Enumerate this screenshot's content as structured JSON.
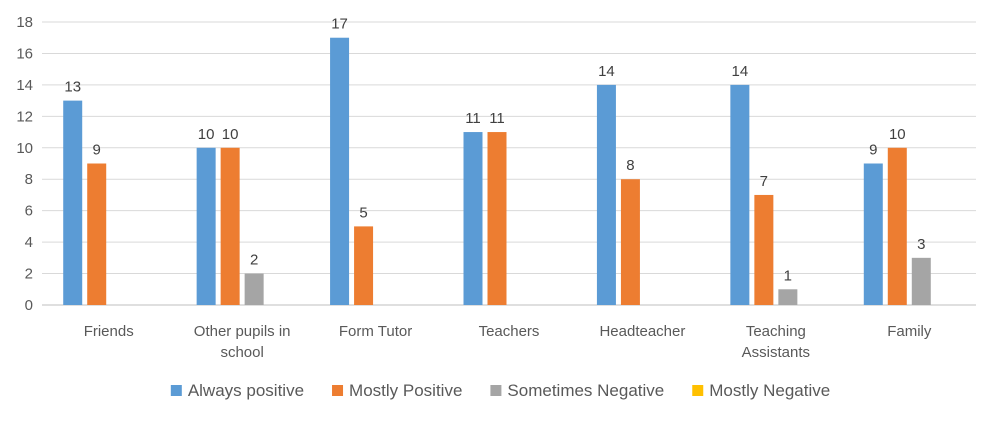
{
  "chart_data": {
    "type": "bar",
    "categories": [
      [
        "Friends"
      ],
      [
        "Other pupils in",
        "school"
      ],
      [
        "Form Tutor"
      ],
      [
        "Teachers"
      ],
      [
        "Headteacher"
      ],
      [
        "Teaching",
        "Assistants"
      ],
      [
        "Family"
      ]
    ],
    "series": [
      {
        "name": "Always positive",
        "color": "#5B9BD5",
        "values": [
          13,
          10,
          17,
          11,
          14,
          14,
          9
        ]
      },
      {
        "name": "Mostly Positive",
        "color": "#ED7D31",
        "values": [
          9,
          10,
          5,
          11,
          8,
          7,
          10
        ]
      },
      {
        "name": "Sometimes Negative",
        "color": "#A5A5A5",
        "values": [
          null,
          2,
          null,
          null,
          null,
          1,
          3
        ]
      },
      {
        "name": "Mostly Negative",
        "color": "#FFC000",
        "values": [
          null,
          null,
          null,
          null,
          null,
          null,
          null
        ]
      }
    ],
    "ylim": [
      0,
      18
    ],
    "yticks": [
      0,
      2,
      4,
      6,
      8,
      10,
      12,
      14,
      16,
      18
    ],
    "grid": true,
    "legend_position": "bottom",
    "title": "",
    "xlabel": "",
    "ylabel": ""
  }
}
